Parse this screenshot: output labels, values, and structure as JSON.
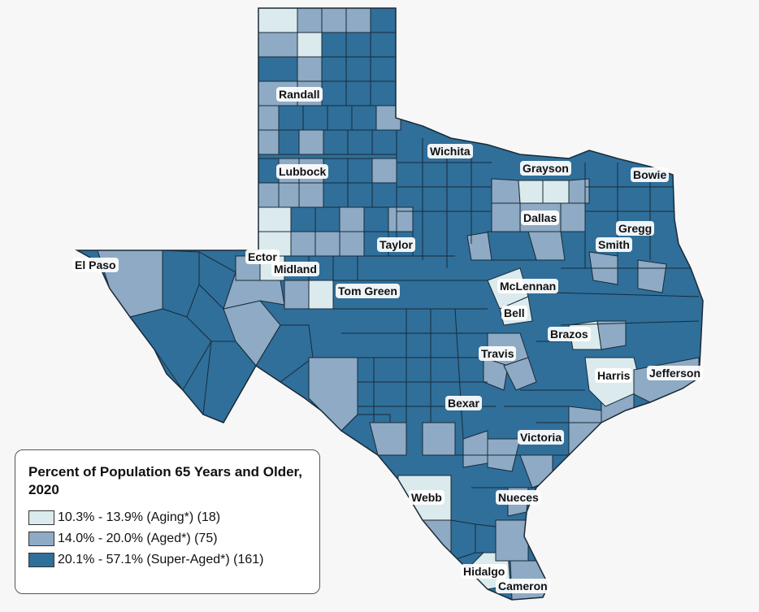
{
  "legend": {
    "title": "Percent of Population 65 Years and Older, 2020",
    "items": [
      {
        "label": "10.3% - 13.9% (Aging*) (18)",
        "color": "#dbeaed"
      },
      {
        "label": "14.0% - 20.0% (Aged*) (75)",
        "color": "#8eaac4"
      },
      {
        "label": "20.1% - 57.1% (Super-Aged*) (161)",
        "color": "#2f6f9a"
      }
    ]
  },
  "counties": [
    {
      "name": "Randall"
    },
    {
      "name": "Wichita"
    },
    {
      "name": "Grayson"
    },
    {
      "name": "Bowie"
    },
    {
      "name": "Lubbock"
    },
    {
      "name": "Dallas"
    },
    {
      "name": "Gregg"
    },
    {
      "name": "Smith"
    },
    {
      "name": "Taylor"
    },
    {
      "name": "El Paso"
    },
    {
      "name": "Ector"
    },
    {
      "name": "Midland"
    },
    {
      "name": "McLennan"
    },
    {
      "name": "Tom Green"
    },
    {
      "name": "Bell"
    },
    {
      "name": "Brazos"
    },
    {
      "name": "Travis"
    },
    {
      "name": "Harris"
    },
    {
      "name": "Jefferson"
    },
    {
      "name": "Bexar"
    },
    {
      "name": "Victoria"
    },
    {
      "name": "Webb"
    },
    {
      "name": "Nueces"
    },
    {
      "name": "Hidalgo"
    },
    {
      "name": "Cameron"
    }
  ]
}
